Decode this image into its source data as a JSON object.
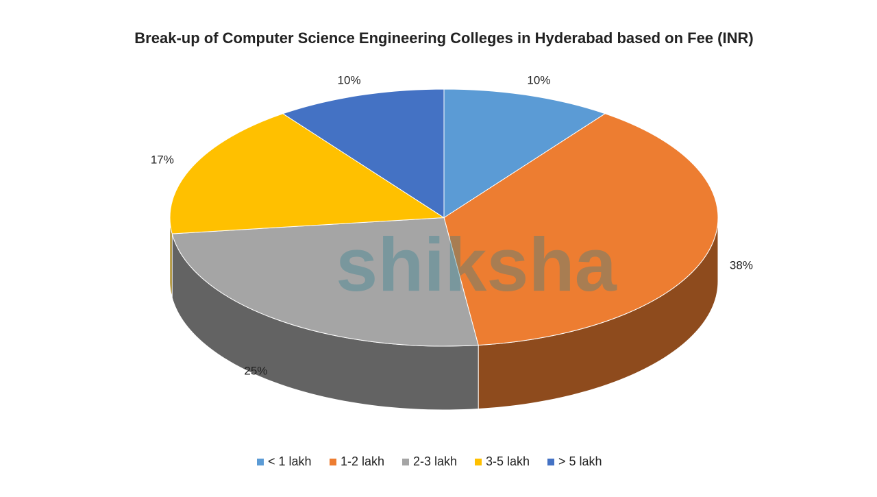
{
  "chart_data": {
    "type": "pie3d",
    "title": "Break-up of Computer Science Engineering Colleges in Hyderabad based on Fee (INR)",
    "categories": [
      "< 1 lakh",
      "1-2 lakh",
      "2-3 lakh",
      "3-5 lakh",
      "> 5 lakh"
    ],
    "values": [
      10,
      38,
      25,
      17,
      10
    ],
    "value_labels": [
      "10%",
      "38%",
      "25%",
      "17%",
      "10%"
    ],
    "colors": [
      "#5b9bd5",
      "#ed7d31",
      "#a5a5a5",
      "#ffc000",
      "#4472c4"
    ],
    "legend": "bottom",
    "watermark": "shiksha"
  }
}
